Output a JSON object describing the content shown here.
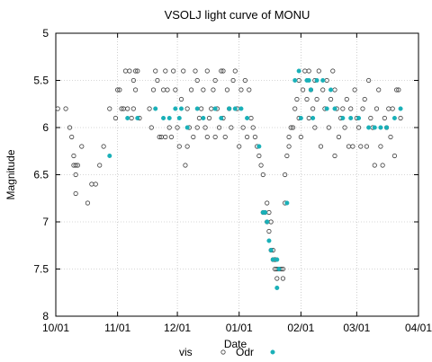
{
  "chart_data": {
    "type": "scatter",
    "title": "VSOLJ light curve of MONU",
    "xlabel": "Date",
    "ylabel": "Magnitude",
    "x_ticks": [
      "10/01",
      "11/01",
      "12/01",
      "01/01",
      "02/01",
      "03/01",
      "04/01"
    ],
    "y_ticks": [
      "5",
      "5.5",
      "6",
      "6.5",
      "7",
      "7.5",
      "8"
    ],
    "xlim_days": [
      0,
      182
    ],
    "ylim": [
      8,
      5
    ],
    "y_reversed": true,
    "grid": true,
    "legend_position": "bottom",
    "colors": {
      "vis": "#404040",
      "Odr": "#1ab0b8"
    },
    "series": [
      {
        "name": "vis",
        "marker": "open-circle",
        "points": [
          [
            1,
            5.8
          ],
          [
            5,
            5.8
          ],
          [
            7,
            6.0
          ],
          [
            8,
            6.1
          ],
          [
            9,
            6.3
          ],
          [
            9,
            6.4
          ],
          [
            10,
            6.4
          ],
          [
            10,
            6.5
          ],
          [
            10,
            6.7
          ],
          [
            11,
            6.4
          ],
          [
            13,
            6.2
          ],
          [
            16,
            6.8
          ],
          [
            18,
            6.6
          ],
          [
            20,
            6.6
          ],
          [
            22,
            6.4
          ],
          [
            24,
            6.2
          ],
          [
            27,
            5.8
          ],
          [
            30,
            5.9
          ],
          [
            31,
            5.6
          ],
          [
            32,
            5.6
          ],
          [
            33,
            5.8
          ],
          [
            34,
            5.8
          ],
          [
            35,
            5.4
          ],
          [
            36,
            5.8
          ],
          [
            37,
            5.4
          ],
          [
            38,
            5.9
          ],
          [
            39,
            5.5
          ],
          [
            39,
            5.8
          ],
          [
            40,
            5.4
          ],
          [
            40,
            5.6
          ],
          [
            41,
            5.4
          ],
          [
            42,
            5.9
          ],
          [
            47,
            5.8
          ],
          [
            48,
            6.0
          ],
          [
            49,
            5.6
          ],
          [
            50,
            5.4
          ],
          [
            51,
            5.5
          ],
          [
            52,
            6.1
          ],
          [
            53,
            6.1
          ],
          [
            54,
            5.6
          ],
          [
            55,
            5.4
          ],
          [
            55,
            6.1
          ],
          [
            56,
            5.6
          ],
          [
            57,
            6.0
          ],
          [
            58,
            6.1
          ],
          [
            59,
            5.4
          ],
          [
            60,
            5.6
          ],
          [
            61,
            6.0
          ],
          [
            62,
            6.2
          ],
          [
            63,
            5.7
          ],
          [
            64,
            5.4
          ],
          [
            65,
            6.4
          ],
          [
            66,
            5.8
          ],
          [
            66,
            6.2
          ],
          [
            67,
            6.0
          ],
          [
            68,
            5.6
          ],
          [
            69,
            6.1
          ],
          [
            70,
            5.4
          ],
          [
            71,
            5.5
          ],
          [
            71,
            6.0
          ],
          [
            72,
            5.9
          ],
          [
            73,
            5.8
          ],
          [
            74,
            5.6
          ],
          [
            75,
            6.0
          ],
          [
            76,
            5.4
          ],
          [
            76,
            6.1
          ],
          [
            77,
            5.9
          ],
          [
            78,
            5.8
          ],
          [
            79,
            5.6
          ],
          [
            80,
            5.5
          ],
          [
            80,
            6.1
          ],
          [
            81,
            5.8
          ],
          [
            82,
            6.0
          ],
          [
            83,
            5.4
          ],
          [
            84,
            5.4
          ],
          [
            84,
            5.9
          ],
          [
            85,
            6.1
          ],
          [
            86,
            5.6
          ],
          [
            87,
            5.8
          ],
          [
            88,
            6.0
          ],
          [
            89,
            5.5
          ],
          [
            90,
            5.4
          ],
          [
            91,
            5.8
          ],
          [
            92,
            6.2
          ],
          [
            93,
            5.6
          ],
          [
            94,
            6.0
          ],
          [
            95,
            5.5
          ],
          [
            96,
            6.1
          ],
          [
            97,
            5.6
          ],
          [
            98,
            5.9
          ],
          [
            99,
            6.0
          ],
          [
            100,
            6.1
          ],
          [
            101,
            6.2
          ],
          [
            102,
            6.3
          ],
          [
            103,
            6.4
          ],
          [
            104,
            6.5
          ],
          [
            104,
            6.9
          ],
          [
            105,
            6.9
          ],
          [
            106,
            6.8
          ],
          [
            106,
            7.0
          ],
          [
            107,
            6.9
          ],
          [
            107,
            7.1
          ],
          [
            108,
            7.0
          ],
          [
            108,
            7.3
          ],
          [
            109,
            7.3
          ],
          [
            109,
            7.4
          ],
          [
            110,
            7.4
          ],
          [
            110,
            7.5
          ],
          [
            111,
            7.5
          ],
          [
            111,
            7.6
          ],
          [
            112,
            7.5
          ],
          [
            113,
            7.5
          ],
          [
            114,
            7.5
          ],
          [
            114,
            7.6
          ],
          [
            115,
            6.8
          ],
          [
            115,
            6.5
          ],
          [
            116,
            6.3
          ],
          [
            117,
            6.1
          ],
          [
            117,
            6.2
          ],
          [
            118,
            6.0
          ],
          [
            119,
            6.0
          ],
          [
            120,
            5.8
          ],
          [
            121,
            5.7
          ],
          [
            122,
            5.5
          ],
          [
            122,
            5.9
          ],
          [
            123,
            6.1
          ],
          [
            124,
            5.6
          ],
          [
            125,
            5.4
          ],
          [
            126,
            5.7
          ],
          [
            127,
            5.4
          ],
          [
            127,
            5.9
          ],
          [
            128,
            5.6
          ],
          [
            129,
            5.8
          ],
          [
            130,
            5.5
          ],
          [
            130,
            6.0
          ],
          [
            131,
            5.7
          ],
          [
            132,
            5.4
          ],
          [
            133,
            6.2
          ],
          [
            134,
            5.6
          ],
          [
            135,
            5.8
          ],
          [
            136,
            5.5
          ],
          [
            137,
            6.0
          ],
          [
            138,
            5.7
          ],
          [
            139,
            5.4
          ],
          [
            140,
            5.6
          ],
          [
            140,
            6.3
          ],
          [
            141,
            5.8
          ],
          [
            142,
            6.1
          ],
          [
            143,
            5.9
          ],
          [
            144,
            5.8
          ],
          [
            145,
            6.0
          ],
          [
            146,
            5.7
          ],
          [
            147,
            6.2
          ],
          [
            148,
            5.8
          ],
          [
            149,
            6.2
          ],
          [
            150,
            5.6
          ],
          [
            151,
            5.9
          ],
          [
            152,
            6.0
          ],
          [
            153,
            6.2
          ],
          [
            154,
            5.8
          ],
          [
            155,
            5.7
          ],
          [
            156,
            6.2
          ],
          [
            157,
            5.5
          ],
          [
            158,
            5.9
          ],
          [
            159,
            6.0
          ],
          [
            160,
            6.4
          ],
          [
            161,
            5.8
          ],
          [
            162,
            5.6
          ],
          [
            163,
            6.2
          ],
          [
            164,
            6.4
          ],
          [
            165,
            5.9
          ],
          [
            166,
            6.0
          ],
          [
            167,
            5.8
          ],
          [
            168,
            6.1
          ],
          [
            169,
            5.8
          ],
          [
            170,
            6.3
          ],
          [
            171,
            5.6
          ],
          [
            172,
            5.6
          ],
          [
            173,
            5.9
          ]
        ]
      },
      {
        "name": "Odr",
        "marker": "filled-circle",
        "points": [
          [
            27,
            6.3
          ],
          [
            36,
            5.9
          ],
          [
            41,
            5.9
          ],
          [
            50,
            5.8
          ],
          [
            54,
            5.9
          ],
          [
            57,
            5.9
          ],
          [
            60,
            5.8
          ],
          [
            62,
            5.9
          ],
          [
            63,
            5.8
          ],
          [
            66,
            6.0
          ],
          [
            71,
            5.8
          ],
          [
            74,
            5.9
          ],
          [
            80,
            5.8
          ],
          [
            83,
            5.9
          ],
          [
            87,
            5.8
          ],
          [
            90,
            5.8
          ],
          [
            93,
            5.8
          ],
          [
            96,
            5.9
          ],
          [
            102,
            6.2
          ],
          [
            104,
            6.9
          ],
          [
            105,
            6.9
          ],
          [
            106,
            7.0
          ],
          [
            107,
            7.2
          ],
          [
            108,
            7.3
          ],
          [
            109,
            7.4
          ],
          [
            111,
            7.4
          ],
          [
            111,
            7.7
          ],
          [
            112,
            7.5
          ],
          [
            116,
            6.8
          ],
          [
            120,
            5.5
          ],
          [
            122,
            5.4
          ],
          [
            123,
            5.9
          ],
          [
            126,
            5.5
          ],
          [
            127,
            5.5
          ],
          [
            128,
            5.6
          ],
          [
            129,
            5.9
          ],
          [
            131,
            5.5
          ],
          [
            134,
            5.5
          ],
          [
            136,
            5.8
          ],
          [
            138,
            5.6
          ],
          [
            140,
            5.8
          ],
          [
            144,
            5.9
          ],
          [
            148,
            5.9
          ],
          [
            152,
            5.9
          ],
          [
            157,
            6.0
          ],
          [
            160,
            6.0
          ],
          [
            163,
            6.0
          ],
          [
            166,
            6.0
          ],
          [
            170,
            5.9
          ],
          [
            173,
            5.8
          ]
        ]
      }
    ]
  }
}
